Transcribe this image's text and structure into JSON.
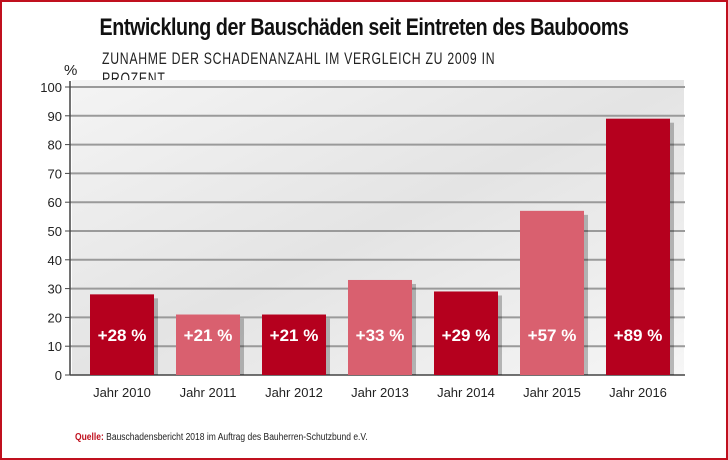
{
  "chart_data": {
    "type": "bar",
    "title": "Entwicklung der Bauschäden seit Eintreten des Baubooms",
    "subtitle": "ZUNAHME DER SCHADENANZAHL IM VERGLEICH ZU 2009 IN PROZENT",
    "ylabel": "%",
    "ylim": [
      0,
      100
    ],
    "yticks": [
      0,
      10,
      20,
      30,
      40,
      50,
      60,
      70,
      80,
      90,
      100
    ],
    "grid": true,
    "categories": [
      "Jahr 2010",
      "Jahr 2011",
      "Jahr 2012",
      "Jahr 2013",
      "Jahr 2014",
      "Jahr 2015",
      "Jahr 2016"
    ],
    "values": [
      28,
      21,
      21,
      33,
      29,
      57,
      89
    ],
    "data_labels": [
      "+28 %",
      "+21 %",
      "+21 %",
      "+33 %",
      "+29 %",
      "+57 %",
      "+89 %"
    ],
    "bar_colors": [
      "#b5001e",
      "#d9606f",
      "#b5001e",
      "#d9606f",
      "#b5001e",
      "#d9606f",
      "#b5001e"
    ]
  },
  "source": {
    "label": "Quelle:",
    "text": "Bauschadensbericht 2018 im Auftrag des Bauherren-Schutzbund e.V."
  },
  "colors": {
    "frame": "#c0101e",
    "dark_bar": "#b5001e",
    "light_bar": "#d9606f"
  }
}
